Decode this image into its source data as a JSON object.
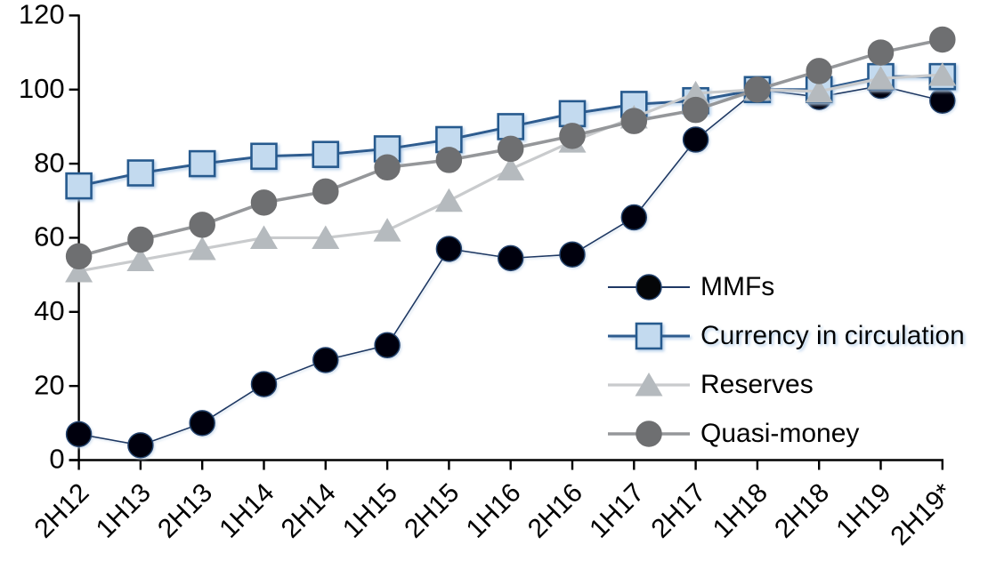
{
  "chart_data": {
    "type": "line",
    "title": "",
    "xlabel": "",
    "ylabel": "",
    "ylim": [
      0,
      120
    ],
    "yticks": [
      0,
      20,
      40,
      60,
      80,
      100,
      120
    ],
    "grid": false,
    "legend_position": "inside-right",
    "axis_color": "#000000",
    "categories": [
      "2H12",
      "1H13",
      "2H13",
      "1H14",
      "2H14",
      "1H15",
      "2H15",
      "1H16",
      "2H16",
      "1H17",
      "2H17",
      "1H18",
      "2H18",
      "1H19",
      "2H19*"
    ],
    "series": [
      {
        "name": "MMFs",
        "marker": "circle",
        "values": [
          7,
          4,
          10,
          20.5,
          27,
          31,
          57,
          54.5,
          55.5,
          65.5,
          86.5,
          100,
          98,
          101,
          97
        ],
        "line_color": "#1F3864",
        "line_width": 1.6,
        "marker_fill": "#050608",
        "marker_stroke": "#24436E"
      },
      {
        "name": "Currency in circulation",
        "marker": "square",
        "values": [
          74,
          77.5,
          80,
          82,
          82.5,
          84,
          86.5,
          90,
          93.5,
          96,
          97,
          100,
          100,
          103.5,
          103.5
        ],
        "line_color": "#2E5C8F",
        "line_width": 3,
        "marker_fill": "#C3DAEF",
        "marker_stroke": "#275A8E",
        "halo": "#AECBE8"
      },
      {
        "name": "Reserves",
        "marker": "triangle",
        "values": [
          51,
          54,
          57,
          60,
          60,
          62,
          70,
          78.5,
          86,
          92.5,
          99,
          100,
          99.5,
          103,
          104
        ],
        "line_color": "#C9CBCD",
        "line_width": 3.2,
        "marker_fill": "#B5BABE",
        "marker_stroke": "#B0B5B9"
      },
      {
        "name": "Quasi-money",
        "marker": "circle",
        "values": [
          55,
          59.5,
          63.5,
          69.5,
          72.5,
          79,
          81,
          84,
          87.5,
          91.5,
          94.5,
          100,
          105,
          110,
          113.5
        ],
        "line_color": "#95979A",
        "line_width": 3.6,
        "marker_fill": "#6E6F71",
        "marker_stroke": "#6E6F71"
      }
    ]
  }
}
